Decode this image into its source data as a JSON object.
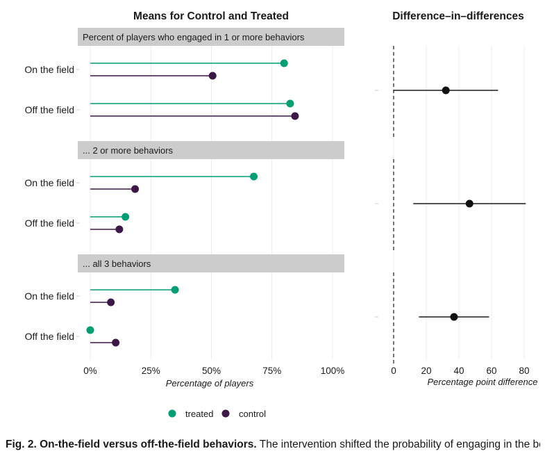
{
  "chart_data": [
    {
      "type": "dumbbell",
      "title": "Means for Control and Treated",
      "xlabel": "Percentage of players",
      "xlim": [
        0,
        100
      ],
      "x_ticks": [
        "0%",
        "25%",
        "50%",
        "75%",
        "100%"
      ],
      "legend": {
        "placement": "bottom",
        "entries": [
          {
            "name": "treated",
            "color": "#009E73"
          },
          {
            "name": "control",
            "color": "#3D1748"
          }
        ]
      },
      "panels": [
        {
          "strip": "Percent of players who engaged in 1 or more behaviors",
          "categories": [
            "On the field",
            "Off the field"
          ],
          "series": [
            {
              "name": "treated",
              "values": [
                80,
                82.5
              ]
            },
            {
              "name": "control",
              "values": [
                50.5,
                84.5
              ]
            }
          ]
        },
        {
          "strip": "... 2 or more behaviors",
          "categories": [
            "On the field",
            "Off the field"
          ],
          "series": [
            {
              "name": "treated",
              "values": [
                67.5,
                14.5
              ]
            },
            {
              "name": "control",
              "values": [
                18.5,
                12
              ]
            }
          ]
        },
        {
          "strip": "... all 3 behaviors",
          "categories": [
            "On the field",
            "Off the field"
          ],
          "series": [
            {
              "name": "treated",
              "values": [
                35,
                0
              ]
            },
            {
              "name": "control",
              "values": [
                8.5,
                10.5
              ]
            }
          ]
        }
      ]
    },
    {
      "type": "scatter",
      "title": "Difference–in–differences",
      "xlabel": "Percentage point difference",
      "xlim": [
        -9,
        86
      ],
      "x_ticks": [
        0,
        20,
        40,
        60,
        80
      ],
      "reference_line": 0,
      "panels": [
        {
          "estimate": 32,
          "ci": [
            0,
            64
          ]
        },
        {
          "estimate": 46.5,
          "ci": [
            12,
            81
          ]
        },
        {
          "estimate": 37,
          "ci": [
            15.5,
            58.5
          ]
        }
      ]
    }
  ],
  "colors": {
    "treated": "#009E73",
    "control": "#3D1748",
    "strip": "#CCCCCC",
    "point": "#111111"
  },
  "caption": {
    "label": "Fig. 2. On-the-field versus off-the-field behaviors.",
    "text": " The intervention shifted the probability of engaging in the behaviors on the field but not off the field."
  }
}
